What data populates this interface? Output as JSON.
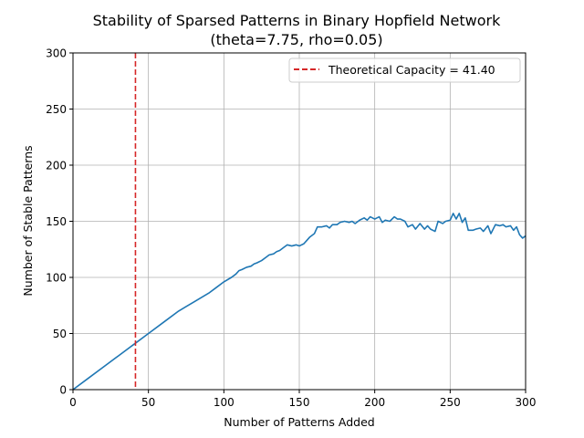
{
  "chart_data": {
    "type": "line",
    "title": "Stability of Sparsed Patterns in Binary Hopfield Network",
    "subtitle": "(theta=7.75, rho=0.05)",
    "xlabel": "Number of Patterns Added",
    "ylabel": "Number of Stable Patterns",
    "xlim": [
      0,
      300
    ],
    "ylim": [
      0,
      300
    ],
    "xticks": [
      0,
      50,
      100,
      150,
      200,
      250,
      300
    ],
    "yticks": [
      0,
      50,
      100,
      150,
      200,
      250,
      300
    ],
    "xtick_labels": [
      "0",
      "50",
      "100",
      "150",
      "200",
      "250",
      "300"
    ],
    "ytick_labels": [
      "0",
      "50",
      "100",
      "150",
      "200",
      "250",
      "300"
    ],
    "grid": true,
    "legend_position": "top-right",
    "series": [
      {
        "color": "#1f77b4",
        "x": [
          0,
          10,
          20,
          30,
          40,
          50,
          60,
          70,
          75,
          80,
          90,
          95,
          100,
          105,
          108,
          110,
          112,
          115,
          118,
          120,
          122,
          125,
          128,
          130,
          133,
          135,
          137,
          140,
          142,
          145,
          148,
          150,
          153,
          155,
          157,
          160,
          162,
          165,
          168,
          170,
          172,
          175,
          177,
          180,
          183,
          185,
          187,
          190,
          193,
          195,
          197,
          200,
          203,
          205,
          207,
          210,
          213,
          215,
          217,
          220,
          222,
          225,
          227,
          230,
          233,
          235,
          237,
          240,
          242,
          245,
          247,
          250,
          252,
          254,
          256,
          258,
          260,
          262,
          265,
          267,
          270,
          272,
          275,
          277,
          280,
          283,
          285,
          287,
          290,
          292,
          294,
          296,
          298,
          300
        ],
        "y": [
          0,
          10,
          20,
          30,
          40,
          50,
          60,
          70,
          74,
          78,
          86,
          91,
          96,
          100,
          103,
          106,
          107,
          109,
          110,
          112,
          113,
          115,
          118,
          120,
          121,
          123,
          124,
          127,
          129,
          128,
          129,
          128,
          130,
          133,
          136,
          139,
          145,
          145,
          146,
          144,
          147,
          147,
          149,
          150,
          149,
          150,
          148,
          151,
          153,
          151,
          154,
          152,
          154,
          149,
          151,
          150,
          154,
          152,
          152,
          150,
          145,
          147,
          143,
          148,
          143,
          146,
          143,
          141,
          150,
          148,
          150,
          151,
          157,
          152,
          157,
          149,
          153,
          142,
          142,
          143,
          144,
          141,
          146,
          139,
          147,
          146,
          147,
          145,
          146,
          142,
          145,
          138,
          135,
          137
        ]
      }
    ],
    "reference_lines": [
      {
        "orientation": "vertical",
        "x": 41.4,
        "style": "dashed",
        "color": "#d62728",
        "label": "Theoretical Capacity = 41.40"
      }
    ]
  }
}
